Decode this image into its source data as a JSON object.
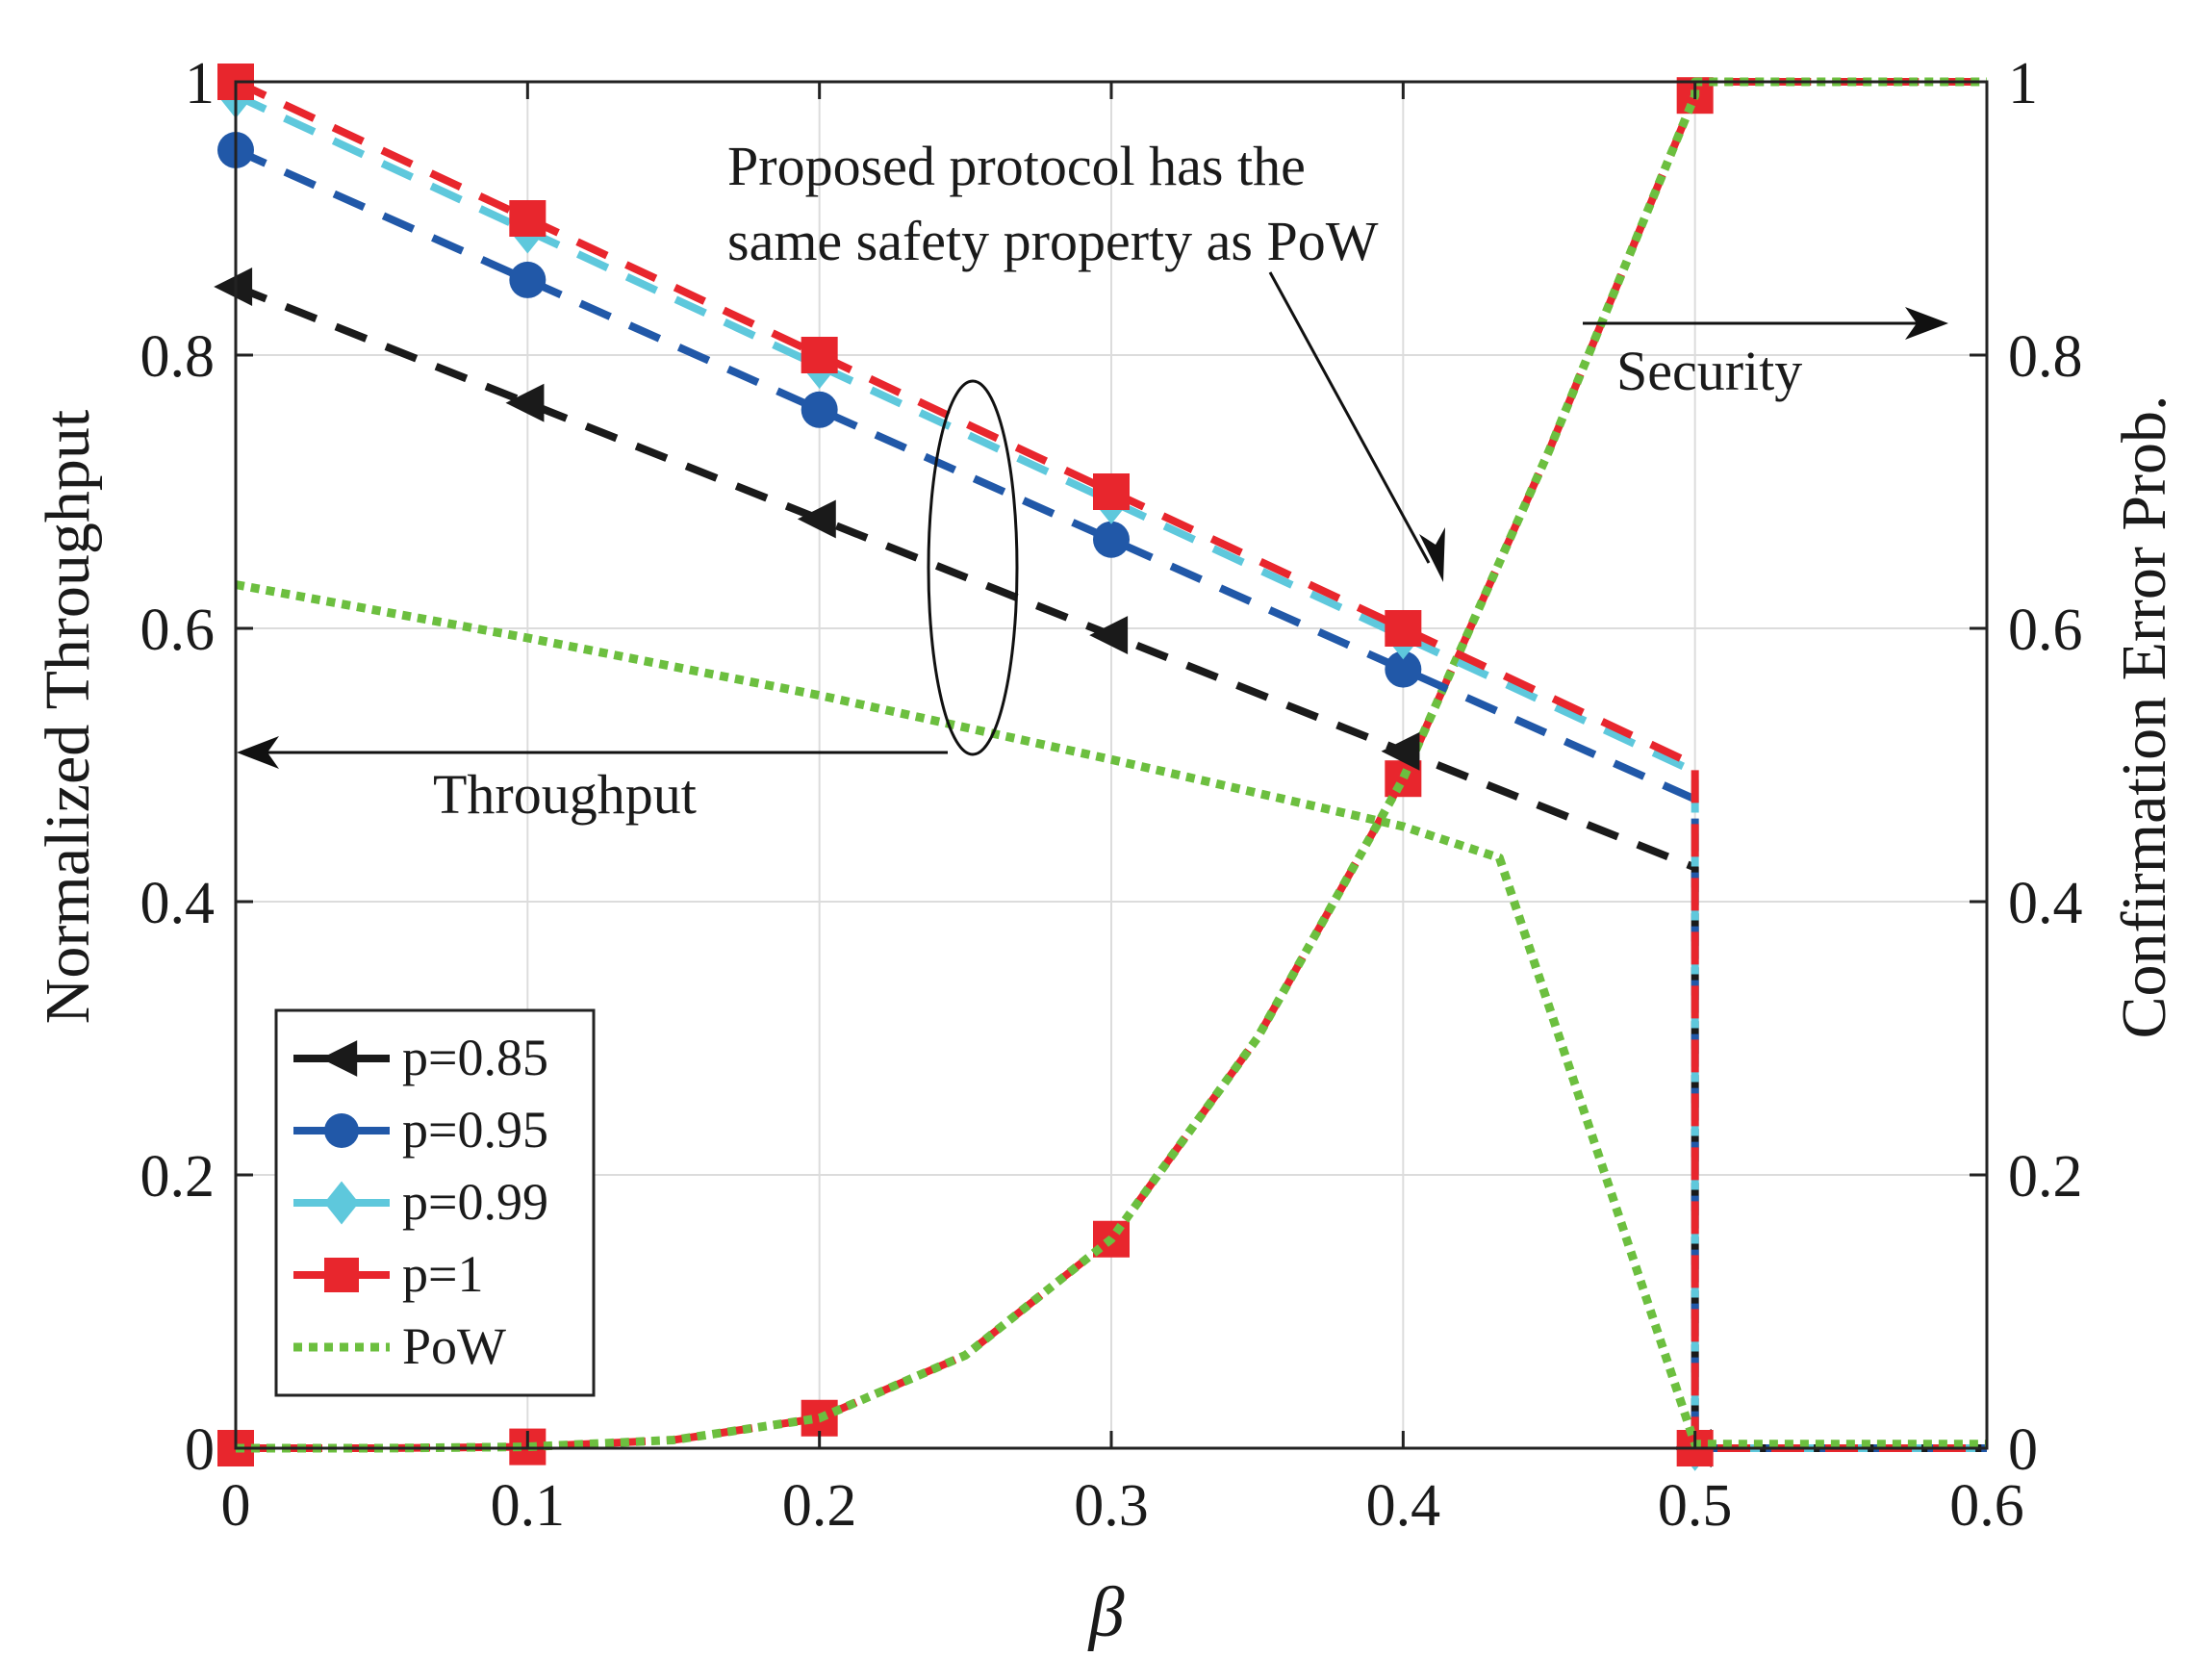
{
  "chart_data": {
    "type": "line",
    "title": "",
    "xlabel": "β",
    "ylabel_left": "Normalized  Throughput",
    "ylabel_right": "Confirmation Error Prob.",
    "xlim": [
      0,
      0.6
    ],
    "ylim_left": [
      0,
      1
    ],
    "ylim_right": [
      0,
      1
    ],
    "grid": true,
    "x_ticks": [
      0,
      0.1,
      0.2,
      0.3,
      0.4,
      0.5,
      0.6
    ],
    "x_tick_labels": [
      "0",
      "0.1",
      "0.2",
      "0.3",
      "0.4",
      "0.5",
      "0.6"
    ],
    "y_ticks": [
      0,
      0.2,
      0.4,
      0.6,
      0.8,
      1
    ],
    "y_tick_labels": [
      "0",
      "0.2",
      "0.4",
      "0.6",
      "0.8",
      "1"
    ],
    "legend_position": "bottom-left",
    "throughput_series": [
      {
        "name": "p=0.85",
        "color": "#1a1a1a",
        "marker": "triangle-left",
        "style": "dashed",
        "x": [
          0,
          0.1,
          0.2,
          0.3,
          0.4,
          0.5,
          0.5,
          0.6
        ],
        "y": [
          0.85,
          0.765,
          0.68,
          0.595,
          0.51,
          0.425,
          0,
          0
        ],
        "marker_x": [
          0,
          0.1,
          0.2,
          0.3,
          0.4,
          0.5
        ],
        "marker_y": [
          0.85,
          0.765,
          0.68,
          0.595,
          0.51,
          0
        ]
      },
      {
        "name": "p=0.95",
        "color": "#2158a8",
        "marker": "circle",
        "style": "dashed",
        "x": [
          0,
          0.1,
          0.2,
          0.3,
          0.4,
          0.5,
          0.5,
          0.6
        ],
        "y": [
          0.95,
          0.855,
          0.76,
          0.665,
          0.57,
          0.475,
          0,
          0
        ],
        "marker_x": [
          0,
          0.1,
          0.2,
          0.3,
          0.4,
          0.5
        ],
        "marker_y": [
          0.95,
          0.855,
          0.76,
          0.665,
          0.57,
          0
        ]
      },
      {
        "name": "p=0.99",
        "color": "#5ec8dc",
        "marker": "diamond",
        "style": "dashed",
        "x": [
          0,
          0.1,
          0.2,
          0.3,
          0.4,
          0.5,
          0.5,
          0.6
        ],
        "y": [
          0.99,
          0.891,
          0.792,
          0.693,
          0.594,
          0.495,
          0,
          0
        ],
        "marker_x": [
          0,
          0.1,
          0.2,
          0.3,
          0.4,
          0.5
        ],
        "marker_y": [
          0.99,
          0.891,
          0.792,
          0.693,
          0.594,
          0
        ]
      },
      {
        "name": "p=1",
        "color": "#e8262d",
        "marker": "square",
        "style": "dashed",
        "x": [
          0,
          0.1,
          0.2,
          0.3,
          0.4,
          0.5,
          0.5,
          0.6
        ],
        "y": [
          1.0,
          0.9,
          0.8,
          0.7,
          0.6,
          0.5,
          0,
          0
        ],
        "marker_x": [
          0,
          0.1,
          0.2,
          0.3,
          0.4,
          0.5
        ],
        "marker_y": [
          1.0,
          0.9,
          0.8,
          0.7,
          0.6,
          0
        ]
      },
      {
        "name": "PoW",
        "color": "#6cbf3f",
        "marker": "none",
        "style": "dotted",
        "x": [
          0,
          0.1,
          0.2,
          0.3,
          0.4,
          0.433,
          0.5,
          0.6
        ],
        "y": [
          0.632,
          0.593,
          0.551,
          0.504,
          0.455,
          0.432,
          0.003,
          0.003
        ]
      }
    ],
    "security_series": [
      {
        "name": "p=1 (error prob.)",
        "color": "#e8262d",
        "marker": "square",
        "style": "dashed",
        "x": [
          0,
          0.05,
          0.1,
          0.15,
          0.2,
          0.25,
          0.3,
          0.35,
          0.4,
          0.45,
          0.5,
          0.5,
          0.6
        ],
        "y": [
          0,
          0,
          0.001,
          0.006,
          0.022,
          0.068,
          0.153,
          0.3,
          0.49,
          0.73,
          0.99,
          1.0,
          1.0
        ],
        "marker_x": [
          0,
          0.1,
          0.2,
          0.3,
          0.4,
          0.5
        ],
        "marker_y": [
          0,
          0.001,
          0.022,
          0.153,
          0.49,
          0.99
        ]
      },
      {
        "name": "PoW (error prob.)",
        "color": "#6cbf3f",
        "marker": "none",
        "style": "dotted",
        "x": [
          0,
          0.05,
          0.1,
          0.15,
          0.2,
          0.25,
          0.3,
          0.35,
          0.4,
          0.45,
          0.5,
          0.5,
          0.6
        ],
        "y": [
          0,
          0,
          0.001,
          0.006,
          0.022,
          0.068,
          0.153,
          0.3,
          0.49,
          0.73,
          0.99,
          1.0,
          1.0
        ]
      }
    ],
    "annotations": {
      "throughput_label": "Throughput",
      "security_label": "Security",
      "safety_line1": "Proposed protocol has the",
      "safety_line2": "same safety property as PoW"
    }
  }
}
